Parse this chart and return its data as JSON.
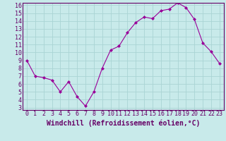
{
  "x": [
    0,
    1,
    2,
    3,
    4,
    5,
    6,
    7,
    8,
    9,
    10,
    11,
    12,
    13,
    14,
    15,
    16,
    17,
    18,
    19,
    20,
    21,
    22,
    23
  ],
  "y": [
    9.0,
    7.0,
    6.8,
    6.5,
    5.0,
    6.3,
    4.4,
    3.2,
    5.0,
    8.0,
    10.3,
    10.8,
    12.5,
    13.8,
    14.5,
    14.3,
    15.3,
    15.5,
    16.3,
    15.7,
    14.2,
    11.2,
    10.1,
    8.6
  ],
  "line_color": "#990099",
  "marker": "D",
  "marker_size": 2,
  "bg_color": "#c8eaea",
  "grid_color": "#aad4d4",
  "xlabel": "Windchill (Refroidissement éolien,°C)",
  "ylim_min": 3,
  "ylim_max": 16,
  "xlim_min": 0,
  "xlim_max": 23,
  "yticks": [
    3,
    4,
    5,
    6,
    7,
    8,
    9,
    10,
    11,
    12,
    13,
    14,
    15,
    16
  ],
  "xticks": [
    0,
    1,
    2,
    3,
    4,
    5,
    6,
    7,
    8,
    9,
    10,
    11,
    12,
    13,
    14,
    15,
    16,
    17,
    18,
    19,
    20,
    21,
    22,
    23
  ],
  "axis_label_color": "#660066",
  "tick_color": "#660066",
  "spine_color": "#660066",
  "xlabel_fontsize": 7,
  "tick_fontsize": 6
}
